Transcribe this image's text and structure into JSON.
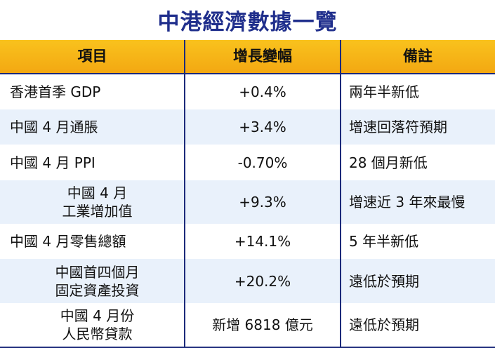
{
  "title": "中港經濟數據一覽",
  "headers": {
    "item": "項目",
    "change": "增長變幅",
    "note": "備註"
  },
  "rows": [
    {
      "item_lines": [
        "香港首季 GDP"
      ],
      "change": "+0.4%",
      "note": "兩年半新低"
    },
    {
      "item_lines": [
        "中國 4 月通脹"
      ],
      "change": "+3.4%",
      "note": "增速回落符預期"
    },
    {
      "item_lines": [
        "中國 4 月 PPI"
      ],
      "change": "-0.70%",
      "note": "28 個月新低"
    },
    {
      "item_lines": [
        "中國 4 月",
        "工業增加值"
      ],
      "change": "+9.3%",
      "note": "增速近 3 年來最慢"
    },
    {
      "item_lines": [
        "中國 4 月零售總額"
      ],
      "change": "+14.1%",
      "note": "5 年半新低"
    },
    {
      "item_lines": [
        "中國首四個月",
        "固定資產投資"
      ],
      "change": "+20.2%",
      "note": "遠低於預期"
    },
    {
      "item_lines": [
        "中國 4 月份",
        "人民幣貸款"
      ],
      "change": "新增 6818 億元",
      "note": "遠低於預期"
    }
  ]
}
